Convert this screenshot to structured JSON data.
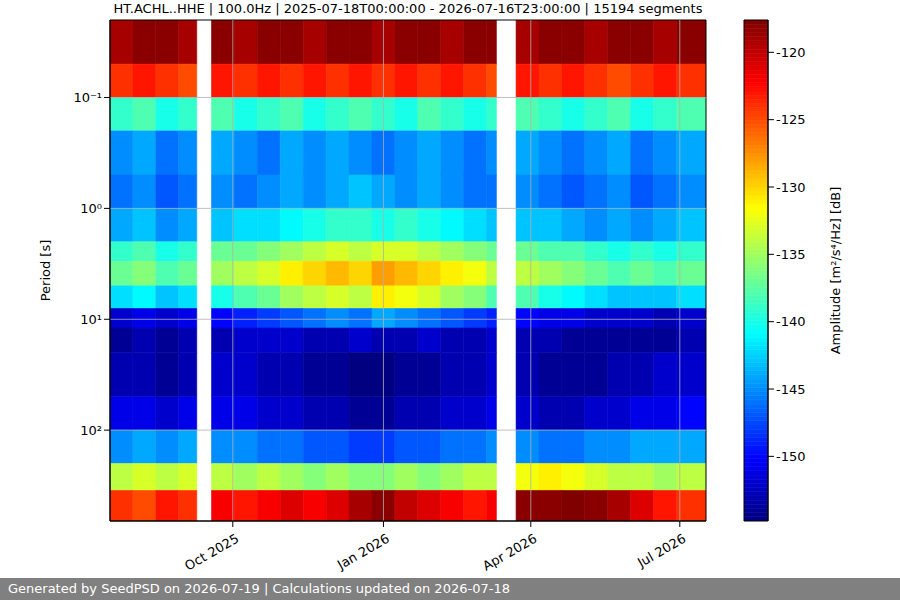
{
  "chart_data": {
    "type": "heatmap",
    "title": "HT.ACHL..HHE | 100.0Hz | 2025-07-18T00:00:00 - 2026-07-16T23:00:00 | 15194 segments",
    "y_label": "Period [s]",
    "footer": "Generated by SeedPSD on 2026-07-19 | Calculations updated on 2026-07-18",
    "log": "y",
    "grid": true,
    "xlim": [
      "2025-07-18",
      "2026-07-17"
    ],
    "xticks": [
      {
        "value": "2025-10-01",
        "label": "Oct 2025"
      },
      {
        "value": "2026-01-01",
        "label": "Jan 2026"
      },
      {
        "value": "2026-04-01",
        "label": "Apr 2026"
      },
      {
        "value": "2026-07-01",
        "label": "Jul 2026"
      }
    ],
    "ylim": [
      0.02,
      660
    ],
    "yticks": [
      {
        "value": 0.1,
        "label": "10⁻¹"
      },
      {
        "value": 1,
        "label": "10⁰"
      },
      {
        "value": 10,
        "label": "10¹"
      },
      {
        "value": 100,
        "label": "10²"
      }
    ],
    "heatmap": {
      "x_edges": [
        "2025-07-18",
        "2025-08-01",
        "2025-08-15",
        "2025-08-29",
        "2025-09-09",
        "2025-09-18",
        "2025-10-02",
        "2025-10-16",
        "2025-10-30",
        "2025-11-13",
        "2025-11-27",
        "2025-12-11",
        "2025-12-25",
        "2026-01-08",
        "2026-01-22",
        "2026-02-05",
        "2026-02-19",
        "2026-03-05",
        "2026-03-11",
        "2026-03-23",
        "2026-04-06",
        "2026-04-20",
        "2026-05-04",
        "2026-05-18",
        "2026-06-01",
        "2026-06-15",
        "2026-06-29",
        "2026-07-17"
      ],
      "y_edges": [
        0.02,
        0.05,
        0.1,
        0.2,
        0.5,
        1,
        2,
        3,
        5,
        8,
        12,
        20,
        50,
        100,
        200,
        350,
        660
      ],
      "values": [
        [
          -119,
          -118,
          -118,
          -119,
          null,
          -118,
          -119,
          -118,
          -118,
          -119,
          -118,
          -118,
          -119,
          -118,
          -118,
          -119,
          -118,
          -118,
          null,
          -119,
          -118,
          -118,
          -119,
          -118,
          -118,
          -119,
          -118
        ],
        [
          -124,
          -123,
          -124,
          -125,
          null,
          -123,
          -124,
          -123,
          -124,
          -123,
          -124,
          -123,
          -124,
          -123,
          -124,
          -123,
          -124,
          -125,
          null,
          -123,
          -124,
          -123,
          -124,
          -125,
          -124,
          -123,
          -124
        ],
        [
          -139,
          -138,
          -140,
          -139,
          null,
          -138,
          -140,
          -139,
          -138,
          -140,
          -139,
          -138,
          -139,
          -140,
          -138,
          -139,
          -140,
          -139,
          null,
          -138,
          -139,
          -140,
          -139,
          -138,
          -140,
          -139,
          -138
        ],
        [
          -145,
          -144,
          -146,
          -145,
          null,
          -144,
          -145,
          -146,
          -144,
          -145,
          -144,
          -145,
          -146,
          -145,
          -144,
          -145,
          -146,
          -145,
          null,
          -144,
          -145,
          -146,
          -145,
          -144,
          -146,
          -145,
          -144
        ],
        [
          -146,
          -145,
          -147,
          -146,
          null,
          -145,
          -146,
          -145,
          -144,
          -145,
          -144,
          -143,
          -144,
          -145,
          -144,
          -145,
          -146,
          -146,
          null,
          -145,
          -146,
          -147,
          -146,
          -145,
          -147,
          -146,
          -145
        ],
        [
          -144,
          -143,
          -145,
          -144,
          null,
          -143,
          -142,
          -142,
          -141,
          -140,
          -139,
          -139,
          -140,
          -139,
          -140,
          -141,
          -142,
          -143,
          null,
          -143,
          -143,
          -144,
          -145,
          -144,
          -145,
          -144,
          -143
        ],
        [
          -139,
          -138,
          -140,
          -139,
          null,
          -137,
          -137,
          -136,
          -135,
          -134,
          -133,
          -134,
          -133,
          -133,
          -134,
          -135,
          -136,
          -137,
          null,
          -137,
          -138,
          -138,
          -139,
          -140,
          -139,
          -140,
          -139
        ],
        [
          -137,
          -136,
          -138,
          -137,
          null,
          -135,
          -134,
          -133,
          -131,
          -130,
          -129,
          -130,
          -128,
          -129,
          -130,
          -131,
          -132,
          -134,
          null,
          -134,
          -135,
          -136,
          -137,
          -138,
          -137,
          -138,
          -137
        ],
        [
          -142,
          -141,
          -143,
          -142,
          null,
          -140,
          -138,
          -137,
          -135,
          -134,
          -133,
          -134,
          -131,
          -132,
          -133,
          -135,
          -136,
          -138,
          null,
          -138,
          -140,
          -141,
          -142,
          -143,
          -143,
          -143,
          -142
        ],
        [
          -152,
          -151,
          -152,
          -151,
          null,
          -150,
          -149,
          -148,
          -147,
          -146,
          -145,
          -146,
          -144,
          -145,
          -146,
          -147,
          -148,
          -149,
          null,
          -150,
          -151,
          -151,
          -152,
          -152,
          -152,
          -153,
          -152
        ],
        [
          -154,
          -153,
          -154,
          -153,
          null,
          -153,
          -152,
          -152,
          -152,
          -153,
          -153,
          -152,
          -153,
          -153,
          -152,
          -153,
          -153,
          -152,
          null,
          -153,
          -153,
          -154,
          -154,
          -154,
          -154,
          -154,
          -153
        ],
        [
          -153,
          -153,
          -154,
          -153,
          null,
          -152,
          -152,
          -153,
          -153,
          -154,
          -154,
          -155,
          -155,
          -154,
          -154,
          -153,
          -153,
          -152,
          null,
          -153,
          -154,
          -154,
          -154,
          -153,
          -153,
          -152,
          -152
        ],
        [
          -151,
          -151,
          -152,
          -151,
          null,
          -151,
          -151,
          -152,
          -152,
          -153,
          -153,
          -154,
          -154,
          -153,
          -153,
          -152,
          -152,
          -151,
          null,
          -152,
          -153,
          -153,
          -152,
          -152,
          -151,
          -151,
          -150
        ],
        [
          -145,
          -144,
          -145,
          -144,
          null,
          -145,
          -145,
          -146,
          -146,
          -147,
          -147,
          -148,
          -148,
          -147,
          -147,
          -146,
          -146,
          -145,
          null,
          -145,
          -146,
          -146,
          -145,
          -145,
          -144,
          -144,
          -144
        ],
        [
          -134,
          -133,
          -134,
          -133,
          null,
          -134,
          -135,
          -134,
          -135,
          -136,
          -135,
          -136,
          -136,
          -135,
          -136,
          -135,
          -134,
          -134,
          null,
          -132,
          -131,
          -132,
          -133,
          -134,
          -134,
          -135,
          -134
        ],
        [
          -124,
          -125,
          -123,
          -124,
          null,
          -122,
          -123,
          -122,
          -121,
          -122,
          -121,
          -119,
          -118,
          -120,
          -121,
          -122,
          -123,
          -122,
          null,
          -118,
          -118,
          -117,
          -118,
          -119,
          -121,
          -123,
          -124
        ]
      ]
    },
    "colorbar": {
      "label": "Amplitude [m²/s⁴/Hz] [dB]",
      "range": [
        -154.8,
        -117.6
      ],
      "ticks": [
        -150,
        -145,
        -140,
        -135,
        -130,
        -125,
        -120
      ]
    }
  }
}
